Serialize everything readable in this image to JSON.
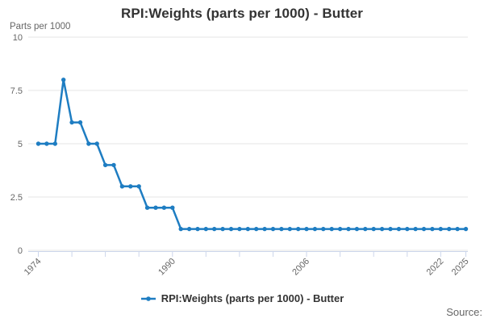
{
  "page": {
    "title": "RPI:Weights (parts per 1000) - Butter",
    "y_axis_unit_label": "Parts per 1000",
    "source_label": "Source:"
  },
  "legend": {
    "label": "RPI:Weights (parts per 1000) - Butter",
    "marker_icon": "line-with-dot"
  },
  "colors": {
    "series_line": "#1e7dc2",
    "gridline": "#e6e6e6",
    "axis_line": "#ccd6eb",
    "tick_label": "#666666",
    "title_text": "#333333",
    "legend_text": "#333333",
    "source_text": "#666666",
    "background": "#ffffff"
  },
  "chart_data": {
    "type": "line",
    "title": "RPI:Weights (parts per 1000) - Butter",
    "ylabel": "Parts per 1000",
    "xlabel": "",
    "x": [
      1974,
      1975,
      1976,
      1977,
      1978,
      1979,
      1980,
      1981,
      1982,
      1983,
      1984,
      1985,
      1986,
      1987,
      1988,
      1989,
      1990,
      1991,
      1992,
      1993,
      1994,
      1995,
      1996,
      1997,
      1998,
      1999,
      2000,
      2001,
      2002,
      2003,
      2004,
      2005,
      2006,
      2007,
      2008,
      2009,
      2010,
      2011,
      2012,
      2013,
      2014,
      2015,
      2016,
      2017,
      2018,
      2019,
      2020,
      2021,
      2022,
      2023,
      2024,
      2025
    ],
    "values": [
      5,
      5,
      5,
      8,
      6,
      6,
      5,
      5,
      4,
      4,
      3,
      3,
      3,
      2,
      2,
      2,
      2,
      1,
      1,
      1,
      1,
      1,
      1,
      1,
      1,
      1,
      1,
      1,
      1,
      1,
      1,
      1,
      1,
      1,
      1,
      1,
      1,
      1,
      1,
      1,
      1,
      1,
      1,
      1,
      1,
      1,
      1,
      1,
      1,
      1,
      1,
      1
    ],
    "ylim": [
      0,
      10
    ],
    "yticks": [
      0,
      2.5,
      5,
      7.5,
      10
    ],
    "ytick_labels": [
      "0",
      "2.5",
      "5",
      "7.5",
      "10"
    ],
    "xticks": [
      1974,
      1978,
      1982,
      1986,
      1990,
      1994,
      1998,
      2002,
      2006,
      2010,
      2014,
      2018,
      2022,
      2025
    ],
    "xtick_labels_shown": [
      "1974",
      "1990",
      "2006",
      "2022",
      "2025"
    ],
    "grid": true,
    "marker": "circle",
    "legend_position": "bottom"
  }
}
